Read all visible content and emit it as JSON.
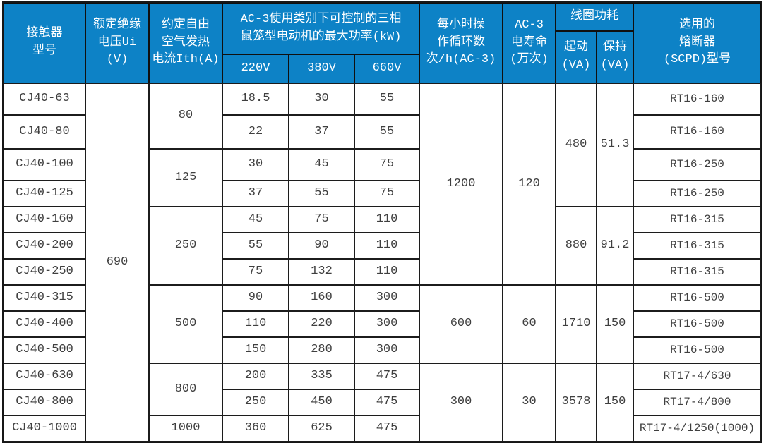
{
  "header": {
    "contactor_model": "接触器\n型号",
    "rated_insulation_voltage": "额定绝缘\n电压Ui (V)",
    "conventional_thermal_current": "约定自由\n空气发热\n电流Ith(A)",
    "ac3_max_power": "AC-3使用类别下可控制的三相\n鼠笼型电动机的最大功率(kW)",
    "v220": "220V",
    "v380": "380V",
    "v660": "660V",
    "operating_cycles": "每小时操\n作循环数\n次/h(AC-3)",
    "ac3_electrical_life": "AC-3\n电寿命\n(万次)",
    "coil_power": "线圈功耗",
    "start_va": "起动\n(VA)",
    "hold_va": "保持\n(VA)",
    "fuse": "选用的\n熔断器\n(SCPD)型号"
  },
  "merged": {
    "ui_voltage": "690",
    "ith": [
      "80",
      "125",
      "250",
      "500",
      "800",
      "1000"
    ],
    "ops": [
      "1200",
      "600",
      "300"
    ],
    "life": [
      "120",
      "60",
      "30"
    ],
    "start_va": [
      "480",
      "880",
      "1710",
      "3578"
    ],
    "hold_va": [
      "51.3",
      "91.2",
      "150",
      "150"
    ]
  },
  "rows": [
    {
      "model": "CJ40-63",
      "p220": "18.5",
      "p380": "30",
      "p660": "55",
      "fuse": "RT16-160"
    },
    {
      "model": "CJ40-80",
      "p220": "22",
      "p380": "37",
      "p660": "55",
      "fuse": "RT16-160"
    },
    {
      "model": "CJ40-100",
      "p220": "30",
      "p380": "45",
      "p660": "75",
      "fuse": "RT16-250"
    },
    {
      "model": "CJ40-125",
      "p220": "37",
      "p380": "55",
      "p660": "75",
      "fuse": "RT16-250"
    },
    {
      "model": "CJ40-160",
      "p220": "45",
      "p380": "75",
      "p660": "110",
      "fuse": "RT16-315"
    },
    {
      "model": "CJ40-200",
      "p220": "55",
      "p380": "90",
      "p660": "110",
      "fuse": "RT16-315"
    },
    {
      "model": "CJ40-250",
      "p220": "75",
      "p380": "132",
      "p660": "110",
      "fuse": "RT16-315"
    },
    {
      "model": "CJ40-315",
      "p220": "90",
      "p380": "160",
      "p660": "300",
      "fuse": "RT16-500"
    },
    {
      "model": "CJ40-400",
      "p220": "110",
      "p380": "220",
      "p660": "300",
      "fuse": "RT16-500"
    },
    {
      "model": "CJ40-500",
      "p220": "150",
      "p380": "280",
      "p660": "300",
      "fuse": "RT16-500"
    },
    {
      "model": "CJ40-630",
      "p220": "200",
      "p380": "335",
      "p660": "475",
      "fuse": "RT17-4/630"
    },
    {
      "model": "CJ40-800",
      "p220": "250",
      "p380": "450",
      "p660": "475",
      "fuse": "RT17-4/800"
    },
    {
      "model": "CJ40-1000",
      "p220": "360",
      "p380": "625",
      "p660": "475",
      "fuse": "RT17-4/1250(1000)"
    }
  ],
  "colors": {
    "header_bg": "#0d82c6",
    "header_text": "#ffffff",
    "body_text": "#3f3f3f",
    "grid_line": "#1c1c1c"
  },
  "chart_data": {
    "type": "table",
    "columns": [
      "接触器型号",
      "额定绝缘电压Ui(V)",
      "约定自由空气发热电流Ith(A)",
      "220V最大功率(kW)",
      "380V最大功率(kW)",
      "660V最大功率(kW)",
      "每小时操作循环数次/h(AC-3)",
      "AC-3电寿命(万次)",
      "线圈功耗起动(VA)",
      "线圈功耗保持(VA)",
      "选用的熔断器(SCPD)型号"
    ],
    "rows": [
      [
        "CJ40-63",
        690,
        80,
        18.5,
        30,
        55,
        1200,
        120,
        480,
        51.3,
        "RT16-160"
      ],
      [
        "CJ40-80",
        690,
        80,
        22,
        37,
        55,
        1200,
        120,
        480,
        51.3,
        "RT16-160"
      ],
      [
        "CJ40-100",
        690,
        125,
        30,
        45,
        75,
        1200,
        120,
        480,
        51.3,
        "RT16-250"
      ],
      [
        "CJ40-125",
        690,
        125,
        37,
        55,
        75,
        1200,
        120,
        480,
        51.3,
        "RT16-250"
      ],
      [
        "CJ40-160",
        690,
        250,
        45,
        75,
        110,
        1200,
        120,
        880,
        91.2,
        "RT16-315"
      ],
      [
        "CJ40-200",
        690,
        250,
        55,
        90,
        110,
        1200,
        120,
        880,
        91.2,
        "RT16-315"
      ],
      [
        "CJ40-250",
        690,
        250,
        75,
        132,
        110,
        1200,
        120,
        880,
        91.2,
        "RT16-315"
      ],
      [
        "CJ40-315",
        690,
        500,
        90,
        160,
        300,
        600,
        60,
        1710,
        150,
        "RT16-500"
      ],
      [
        "CJ40-400",
        690,
        500,
        110,
        220,
        300,
        600,
        60,
        1710,
        150,
        "RT16-500"
      ],
      [
        "CJ40-500",
        690,
        500,
        150,
        280,
        300,
        600,
        60,
        1710,
        150,
        "RT16-500"
      ],
      [
        "CJ40-630",
        690,
        800,
        200,
        335,
        475,
        300,
        30,
        3578,
        150,
        "RT17-4/630"
      ],
      [
        "CJ40-800",
        690,
        800,
        250,
        450,
        475,
        300,
        30,
        3578,
        150,
        "RT17-4/800"
      ],
      [
        "CJ40-1000",
        690,
        1000,
        360,
        625,
        475,
        300,
        30,
        3578,
        150,
        "RT17-4/1250(1000)"
      ]
    ]
  }
}
